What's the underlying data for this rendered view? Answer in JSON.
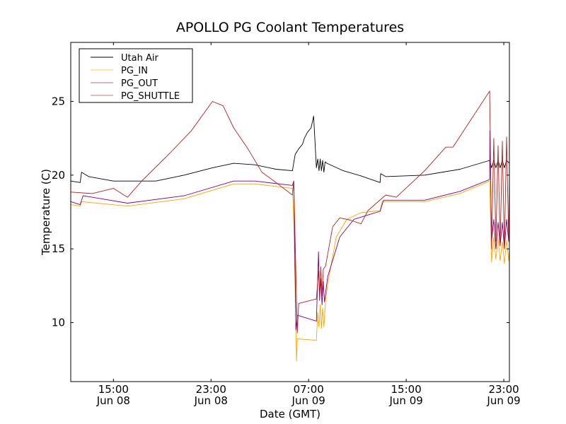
{
  "chart_data": {
    "type": "line",
    "title": "APOLLO PG Coolant Temperatures",
    "xlabel": "Date (GMT)",
    "ylabel": "Temperature (C)",
    "x_units": "hours since Jun 08 00:00 GMT",
    "xlim": [
      11.5,
      47.46
    ],
    "ylim": [
      6,
      29
    ],
    "grid": false,
    "legend_placement": "top-left",
    "yticks": [
      {
        "value": 10,
        "label": "10"
      },
      {
        "value": 15,
        "label": "15"
      },
      {
        "value": 20,
        "label": "20"
      },
      {
        "value": 25,
        "label": "25"
      }
    ],
    "xticks": [
      {
        "value": 15,
        "time": "15:00",
        "date": "Jun 08"
      },
      {
        "value": 23,
        "time": "23:00",
        "date": "Jun 08"
      },
      {
        "value": 31,
        "time": "07:00",
        "date": "Jun 09"
      },
      {
        "value": 39,
        "time": "15:00",
        "date": "Jun 09"
      },
      {
        "value": 47,
        "time": "23:00",
        "date": "Jun 09"
      }
    ],
    "series": [
      {
        "name": "Utah Air",
        "color": "#000000",
        "points": [
          [
            11.52,
            19.6
          ],
          [
            12.27,
            19.5
          ],
          [
            12.39,
            20.2
          ],
          [
            12.97,
            19.9
          ],
          [
            15,
            19.6
          ],
          [
            18.48,
            19.6
          ],
          [
            20.8,
            20.0
          ],
          [
            23.12,
            20.5
          ],
          [
            24.86,
            20.8
          ],
          [
            26.59,
            20.7
          ],
          [
            28.33,
            20.4
          ],
          [
            29.67,
            20.3
          ],
          [
            29.9,
            21.4
          ],
          [
            30.2,
            21.8
          ],
          [
            30.5,
            22.1
          ],
          [
            30.65,
            22.5
          ],
          [
            30.9,
            22.9
          ],
          [
            31.2,
            23.2
          ],
          [
            31.41,
            24.0
          ],
          [
            31.64,
            20.5
          ],
          [
            31.75,
            21.1
          ],
          [
            31.85,
            20.3
          ],
          [
            31.95,
            21.1
          ],
          [
            32.05,
            20.3
          ],
          [
            32.15,
            21.0
          ],
          [
            32.25,
            20.2
          ],
          [
            32.35,
            20.9
          ],
          [
            32.51,
            20.8
          ],
          [
            33.84,
            20.3
          ],
          [
            35.29,
            19.95
          ],
          [
            36.86,
            19.5
          ],
          [
            36.91,
            20.1
          ],
          [
            37.32,
            19.9
          ],
          [
            40.51,
            20.0
          ],
          [
            43.41,
            20.4
          ],
          [
            45.84,
            21.0
          ],
          [
            46.0,
            20.5
          ],
          [
            46.18,
            21.0
          ],
          [
            46.35,
            20.5
          ],
          [
            46.53,
            21.0
          ],
          [
            46.7,
            20.5
          ],
          [
            46.88,
            21.0
          ],
          [
            47.05,
            20.5
          ],
          [
            47.23,
            21.0
          ],
          [
            47.46,
            20.8
          ]
        ]
      },
      {
        "name": "PG_IN",
        "color": "#ffa500",
        "points": [
          [
            11.52,
            18.0
          ],
          [
            12.27,
            17.9
          ],
          [
            12.39,
            18.2
          ],
          [
            16.16,
            17.9
          ],
          [
            20.8,
            18.4
          ],
          [
            24.86,
            19.4
          ],
          [
            26.59,
            19.4
          ],
          [
            29.67,
            19.1
          ],
          [
            29.78,
            17.0
          ],
          [
            30.01,
            7.4
          ],
          [
            30.07,
            8.9
          ],
          [
            31.64,
            8.8
          ],
          [
            31.75,
            10.7
          ],
          [
            31.85,
            9.7
          ],
          [
            31.95,
            11.2
          ],
          [
            32.05,
            9.6
          ],
          [
            32.15,
            11.0
          ],
          [
            32.25,
            9.7
          ],
          [
            32.39,
            11.5
          ],
          [
            32.56,
            12.6
          ],
          [
            33.26,
            15.8
          ],
          [
            34.13,
            17.0
          ],
          [
            35.29,
            17.45
          ],
          [
            36.86,
            17.6
          ],
          [
            37.03,
            18.2
          ],
          [
            40.51,
            18.2
          ],
          [
            43.41,
            18.75
          ],
          [
            45.84,
            19.6
          ],
          [
            46.0,
            14.1
          ],
          [
            46.18,
            15.8
          ],
          [
            46.35,
            14.3
          ],
          [
            46.53,
            15.7
          ],
          [
            46.7,
            14.2
          ],
          [
            46.88,
            15.5
          ],
          [
            47.05,
            14.0
          ],
          [
            47.23,
            15.6
          ],
          [
            47.4,
            14.2
          ],
          [
            47.46,
            15.0
          ]
        ]
      },
      {
        "name": "PG_OUT",
        "color": "#800080",
        "points": [
          [
            11.52,
            18.2
          ],
          [
            12.27,
            18.0
          ],
          [
            12.51,
            18.6
          ],
          [
            16.16,
            18.1
          ],
          [
            20.8,
            18.6
          ],
          [
            24.86,
            19.6
          ],
          [
            26.59,
            19.6
          ],
          [
            29.67,
            19.3
          ],
          [
            29.78,
            19.6
          ],
          [
            29.96,
            9.5
          ],
          [
            30.07,
            10.5
          ],
          [
            31.64,
            10.1
          ],
          [
            31.81,
            14.8
          ],
          [
            31.9,
            11.5
          ],
          [
            32.0,
            13.0
          ],
          [
            32.1,
            11.2
          ],
          [
            32.2,
            12.8
          ],
          [
            32.3,
            11.4
          ],
          [
            32.56,
            13.1
          ],
          [
            33.55,
            15.8
          ],
          [
            34.71,
            17.0
          ],
          [
            35.87,
            17.3
          ],
          [
            36.86,
            17.55
          ],
          [
            37.14,
            18.3
          ],
          [
            40.51,
            18.3
          ],
          [
            43.41,
            18.9
          ],
          [
            45.84,
            19.7
          ],
          [
            45.86,
            23.0
          ],
          [
            46.0,
            15.5
          ],
          [
            46.18,
            17.0
          ],
          [
            46.35,
            15.0
          ],
          [
            46.53,
            16.8
          ],
          [
            46.7,
            15.2
          ],
          [
            46.88,
            16.8
          ],
          [
            47.05,
            15.0
          ],
          [
            47.23,
            17.0
          ],
          [
            47.4,
            15.5
          ],
          [
            47.46,
            16.0
          ]
        ]
      },
      {
        "name": "PG_SHUTTLE",
        "color": "#b22222",
        "points": [
          [
            11.52,
            18.85
          ],
          [
            13.26,
            18.75
          ],
          [
            15,
            19.1
          ],
          [
            16.16,
            18.5
          ],
          [
            17.32,
            19.6
          ],
          [
            19.64,
            21.5
          ],
          [
            21.38,
            23.0
          ],
          [
            23.12,
            25.0
          ],
          [
            23.99,
            24.7
          ],
          [
            24.86,
            23.2
          ],
          [
            26.01,
            21.8
          ],
          [
            27.17,
            20.2
          ],
          [
            28.33,
            19.5
          ],
          [
            29.67,
            18.65
          ],
          [
            29.78,
            19.6
          ],
          [
            30.07,
            9.3
          ],
          [
            30.19,
            11.3
          ],
          [
            31.64,
            11.6
          ],
          [
            31.81,
            13.5
          ],
          [
            31.9,
            11.7
          ],
          [
            32.0,
            13.8
          ],
          [
            32.1,
            11.8
          ],
          [
            32.2,
            13.6
          ],
          [
            32.39,
            13.85
          ],
          [
            32.97,
            16.5
          ],
          [
            33.55,
            17.1
          ],
          [
            34.42,
            16.95
          ],
          [
            35.29,
            16.7
          ],
          [
            35.87,
            17.6
          ],
          [
            37.32,
            18.65
          ],
          [
            38.19,
            18.5
          ],
          [
            40.51,
            20.3
          ],
          [
            42.25,
            21.9
          ],
          [
            42.83,
            21.9
          ],
          [
            45.84,
            25.7
          ],
          [
            46.0,
            15.0
          ],
          [
            46.18,
            22.5
          ],
          [
            46.35,
            15.5
          ],
          [
            46.53,
            22.0
          ],
          [
            46.7,
            15.2
          ],
          [
            46.88,
            22.3
          ],
          [
            47.05,
            15.0
          ],
          [
            47.23,
            22.6
          ],
          [
            47.4,
            15.5
          ],
          [
            47.46,
            20.0
          ]
        ]
      }
    ]
  }
}
